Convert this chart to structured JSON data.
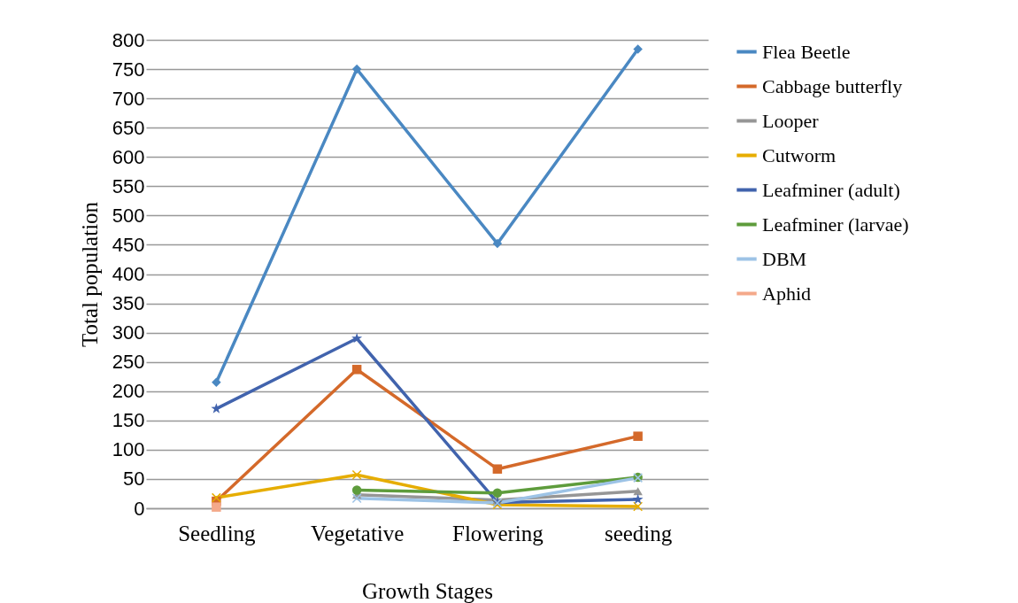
{
  "chart_data": {
    "type": "line",
    "xlabel": "Growth Stages",
    "ylabel": "Total population",
    "categories": [
      "Seedling",
      "Vegetative",
      "Flowering",
      "seeding"
    ],
    "ylim": [
      0,
      800
    ],
    "yticks": [
      0,
      50,
      100,
      150,
      200,
      250,
      300,
      350,
      400,
      450,
      500,
      550,
      600,
      650,
      700,
      750,
      800
    ],
    "grid": "y",
    "legend": "right",
    "series": [
      {
        "name": "Flea Beetle",
        "color": "#4a88c2",
        "marker": "diamond",
        "values": [
          215,
          750,
          452,
          784
        ]
      },
      {
        "name": "Cabbage butterfly",
        "color": "#d4692a",
        "marker": "square",
        "values": [
          12,
          237,
          67,
          123
        ]
      },
      {
        "name": "Looper",
        "color": "#969696",
        "marker": "triangle",
        "values": [
          null,
          23,
          14,
          29
        ]
      },
      {
        "name": "Cutworm",
        "color": "#e6ad00",
        "marker": "cross",
        "values": [
          18,
          57,
          6,
          3
        ]
      },
      {
        "name": "Leafminer (adult)",
        "color": "#4163ad",
        "marker": "star",
        "values": [
          170,
          290,
          10,
          15
        ]
      },
      {
        "name": "Leafminer (larvae)",
        "color": "#5e9c3c",
        "marker": "circle",
        "values": [
          null,
          31,
          26,
          53
        ]
      },
      {
        "name": "DBM",
        "color": "#9dc3e6",
        "marker": "cross",
        "values": [
          null,
          17,
          9,
          52
        ]
      },
      {
        "name": "Aphid",
        "color": "#f4a98a",
        "marker": "square",
        "values": [
          2,
          null,
          null,
          null
        ]
      }
    ]
  }
}
